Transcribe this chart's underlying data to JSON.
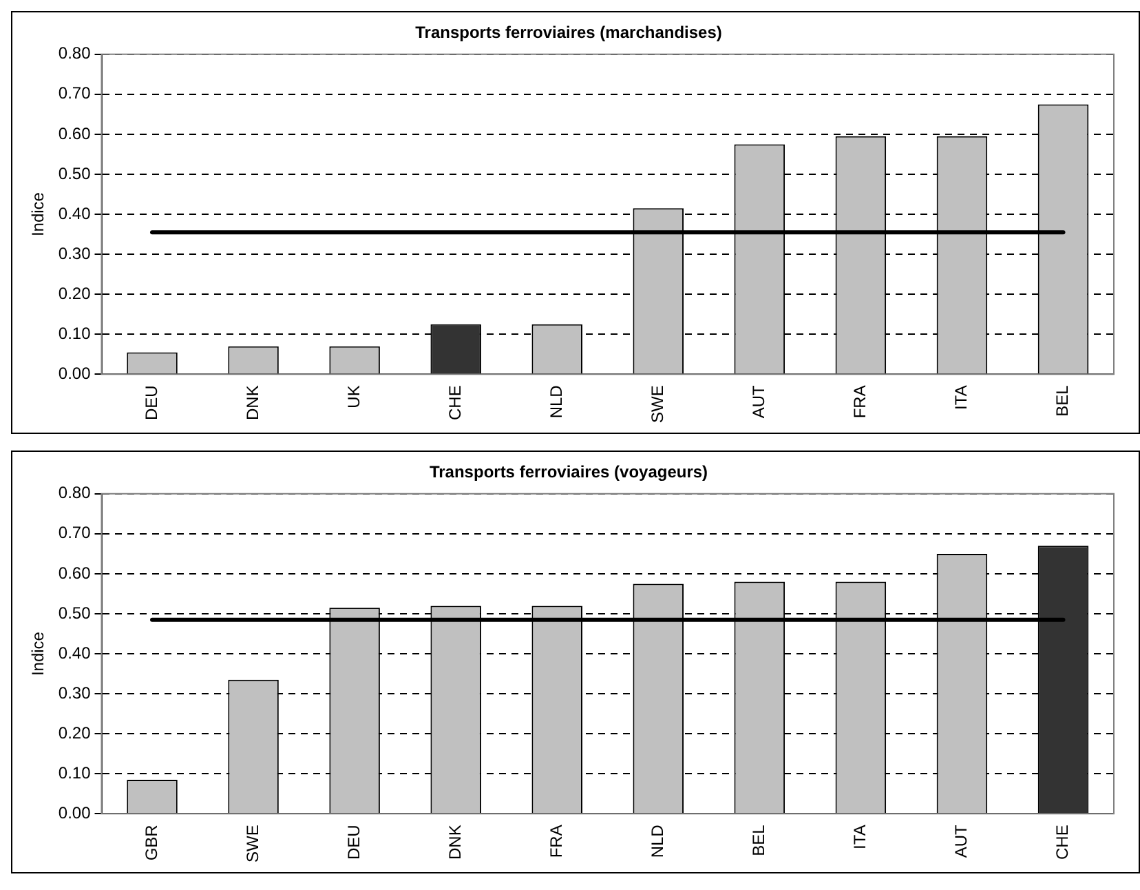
{
  "chart_data": [
    {
      "type": "bar",
      "title": "Transports ferroviaires (marchandises)",
      "ylabel": "Indice",
      "categories": [
        "DEU",
        "DNK",
        "UK",
        "CHE",
        "NLD",
        "SWE",
        "AUT",
        "FRA",
        "ITA",
        "BEL"
      ],
      "values": [
        0.055,
        0.07,
        0.07,
        0.125,
        0.125,
        0.415,
        0.575,
        0.595,
        0.595,
        0.675
      ],
      "colors": [
        "#c0c0c0",
        "#c0c0c0",
        "#c0c0c0",
        "#333333",
        "#c0c0c0",
        "#c0c0c0",
        "#c0c0c0",
        "#c0c0c0",
        "#c0c0c0",
        "#c0c0c0"
      ],
      "ylim": [
        0,
        0.8
      ],
      "yticks": [
        {
          "value": 0,
          "label": "0.00"
        },
        {
          "value": 0.1,
          "label": "0.10"
        },
        {
          "value": 0.2,
          "label": "0.20"
        },
        {
          "value": 0.3,
          "label": "0.30"
        },
        {
          "value": 0.4,
          "label": "0.40"
        },
        {
          "value": 0.5,
          "label": "0.50"
        },
        {
          "value": 0.6,
          "label": "0.60"
        },
        {
          "value": 0.7,
          "label": "0.70"
        },
        {
          "value": 0.8,
          "label": "0.80"
        }
      ],
      "ref_lines": [
        {
          "axis": "y",
          "value": 0.355,
          "color": "#000000"
        }
      ],
      "grid": "y",
      "legend": false
    },
    {
      "type": "bar",
      "title": "Transports ferroviaires (voyageurs)",
      "ylabel": "Indice",
      "categories": [
        "GBR",
        "SWE",
        "DEU",
        "DNK",
        "FRA",
        "NLD",
        "BEL",
        "ITA",
        "AUT",
        "CHE"
      ],
      "values": [
        0.085,
        0.335,
        0.515,
        0.52,
        0.52,
        0.575,
        0.58,
        0.58,
        0.65,
        0.67
      ],
      "colors": [
        "#c0c0c0",
        "#c0c0c0",
        "#c0c0c0",
        "#c0c0c0",
        "#c0c0c0",
        "#c0c0c0",
        "#c0c0c0",
        "#c0c0c0",
        "#c0c0c0",
        "#333333"
      ],
      "ylim": [
        0,
        0.8
      ],
      "yticks": [
        {
          "value": 0,
          "label": "0.00"
        },
        {
          "value": 0.1,
          "label": "0.10"
        },
        {
          "value": 0.2,
          "label": "0.20"
        },
        {
          "value": 0.3,
          "label": "0.30"
        },
        {
          "value": 0.4,
          "label": "0.40"
        },
        {
          "value": 0.5,
          "label": "0.50"
        },
        {
          "value": 0.6,
          "label": "0.60"
        },
        {
          "value": 0.7,
          "label": "0.70"
        },
        {
          "value": 0.8,
          "label": "0.80"
        }
      ],
      "ref_lines": [
        {
          "axis": "y",
          "value": 0.485,
          "color": "#000000"
        }
      ],
      "grid": "y",
      "legend": false
    }
  ]
}
